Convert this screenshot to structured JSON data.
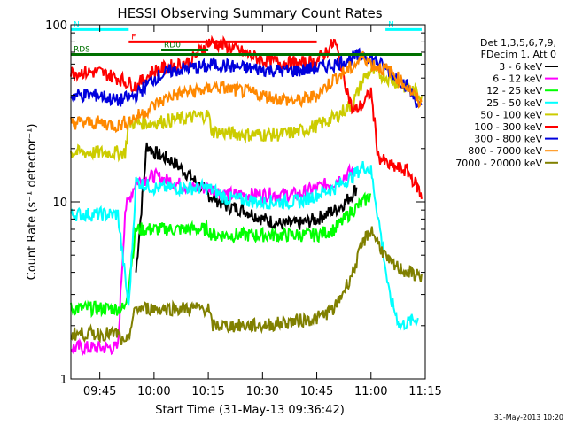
{
  "chart_data": {
    "type": "line",
    "title": "HESSI Observing Summary Count Rates",
    "xlabel": "Start Time (31-May-13 09:36:42)",
    "ylabel": "Count Rate (s⁻¹ detector⁻¹)",
    "y_scale": "log",
    "ylim": [
      1,
      100
    ],
    "xlim": [
      "09:37",
      "11:15"
    ],
    "x_ticks": [
      "09:45",
      "10:00",
      "10:15",
      "10:30",
      "10:45",
      "11:00",
      "11:15"
    ],
    "y_ticks": [
      "1",
      "10",
      "100"
    ],
    "legend_header": [
      "Det 1,3,5,6,7,9,",
      "FDecim 1, Att 0"
    ],
    "legend_position": "right",
    "timestamp": "31-May-2013 10:20",
    "flags": [
      {
        "label": "N",
        "color": "#00ffff",
        "start": "09:37",
        "end": "09:53",
        "level": 94
      },
      {
        "label": "N",
        "color": "#00ffff",
        "start": "11:04",
        "end": "11:14",
        "level": 94
      },
      {
        "label": "F",
        "color": "#ff0000",
        "start": "09:53",
        "end": "10:45",
        "level": 80
      },
      {
        "label": "RD0",
        "color": "#007000",
        "start": "10:02",
        "end": "10:15",
        "level": 72
      },
      {
        "label": "RDS",
        "color": "#007000",
        "start": "09:37",
        "end": "11:14",
        "level": 68
      }
    ],
    "series": [
      {
        "name": "3 - 6 keV",
        "color": "#000000",
        "x": [
          "09:55",
          "09:58",
          "10:00",
          "10:05",
          "10:10",
          "10:15",
          "10:20",
          "10:25",
          "10:30",
          "10:35",
          "10:40",
          "10:45",
          "10:50",
          "10:53",
          "10:56"
        ],
        "y": [
          4,
          21,
          19,
          17,
          14,
          11,
          9.5,
          9,
          8,
          7.5,
          7.5,
          8,
          9,
          10,
          12
        ]
      },
      {
        "name": "6 - 12 keV",
        "color": "#ff00ff",
        "x": [
          "09:37",
          "09:50",
          "09:52",
          "09:55",
          "10:00",
          "10:05",
          "10:10",
          "10:15",
          "10:20",
          "10:30",
          "10:40",
          "10:45",
          "10:50",
          "10:55"
        ],
        "y": [
          1.5,
          1.5,
          9,
          13,
          14,
          13,
          12,
          12,
          11,
          11,
          11,
          12,
          13,
          15
        ]
      },
      {
        "name": "12 - 25 keV",
        "color": "#00ff00",
        "x": [
          "09:37",
          "09:45",
          "09:52",
          "09:55",
          "10:00",
          "10:15",
          "10:16",
          "10:30",
          "10:45",
          "10:50",
          "10:55",
          "10:58",
          "11:00"
        ],
        "y": [
          2.5,
          2.5,
          2.5,
          7,
          7,
          7,
          6.5,
          6.5,
          6.5,
          7,
          9,
          10,
          11
        ]
      },
      {
        "name": "25 - 50 keV",
        "color": "#00ffff",
        "x": [
          "09:37",
          "09:50",
          "09:53",
          "09:55",
          "10:00",
          "10:15",
          "10:20",
          "10:30",
          "10:40",
          "10:45",
          "10:50",
          "10:55",
          "10:58",
          "11:00",
          "11:03",
          "11:05",
          "11:08",
          "11:13"
        ],
        "y": [
          8.5,
          8.5,
          2.5,
          13,
          12,
          12,
          10.5,
          10,
          10,
          11,
          12,
          14,
          16,
          15,
          6,
          3,
          2,
          2.2
        ]
      },
      {
        "name": "50 - 100 keV",
        "color": "#cccc00",
        "x": [
          "09:37",
          "09:52",
          "09:53",
          "10:00",
          "10:10",
          "10:15",
          "10:16",
          "10:25",
          "10:35",
          "10:40",
          "10:45",
          "10:50",
          "10:55",
          "10:58",
          "11:00",
          "11:05",
          "11:10",
          "11:14"
        ],
        "y": [
          19,
          19,
          28,
          28,
          30,
          31,
          25,
          24,
          24,
          25,
          27,
          30,
          36,
          50,
          55,
          50,
          44,
          40
        ]
      },
      {
        "name": "100 - 300 keV",
        "color": "#ff0000",
        "x": [
          "09:37",
          "09:45",
          "09:50",
          "09:55",
          "10:00",
          "10:10",
          "10:15",
          "10:20",
          "10:30",
          "10:40",
          "10:45",
          "10:50",
          "10:55",
          "10:58",
          "11:00",
          "11:02",
          "11:05",
          "11:10",
          "11:13",
          "11:14"
        ],
        "y": [
          54,
          54,
          50,
          45,
          55,
          62,
          80,
          76,
          63,
          60,
          62,
          80,
          32,
          36,
          42,
          18,
          16,
          15,
          12,
          10.5
        ]
      },
      {
        "name": "300 - 800 keV",
        "color": "#0000dd",
        "x": [
          "09:37",
          "09:45",
          "09:50",
          "09:55",
          "10:00",
          "10:05",
          "10:10",
          "10:15",
          "10:16",
          "10:25",
          "10:35",
          "10:40",
          "10:45",
          "10:50",
          "10:55",
          "10:58",
          "11:00",
          "11:05",
          "11:10",
          "11:14"
        ],
        "y": [
          40,
          40,
          37,
          40,
          50,
          55,
          57,
          58,
          60,
          57,
          55,
          55,
          57,
          60,
          65,
          68,
          65,
          55,
          45,
          33
        ]
      },
      {
        "name": "800 - 7000 keV",
        "color": "#ff8800",
        "x": [
          "09:37",
          "09:45",
          "09:50",
          "09:55",
          "10:00",
          "10:05",
          "10:10",
          "10:15",
          "10:16",
          "10:25",
          "10:35",
          "10:40",
          "10:45",
          "10:50",
          "10:55",
          "10:58",
          "11:00",
          "11:05",
          "11:10",
          "11:14"
        ],
        "y": [
          28,
          28,
          27,
          30,
          35,
          40,
          42,
          43,
          45,
          42,
          38,
          37,
          40,
          50,
          58,
          67,
          60,
          55,
          45,
          35
        ]
      },
      {
        "name": "7000 - 20000 keV",
        "color": "#808000",
        "x": [
          "09:37",
          "09:50",
          "09:52",
          "09:55",
          "10:15",
          "10:16",
          "10:30",
          "10:45",
          "10:50",
          "10:55",
          "10:58",
          "11:00",
          "11:05",
          "11:10",
          "11:14"
        ],
        "y": [
          1.8,
          1.8,
          1.5,
          2.5,
          2.5,
          2,
          2,
          2.2,
          2.5,
          4,
          6,
          7,
          4.5,
          4,
          3.8
        ]
      }
    ]
  }
}
